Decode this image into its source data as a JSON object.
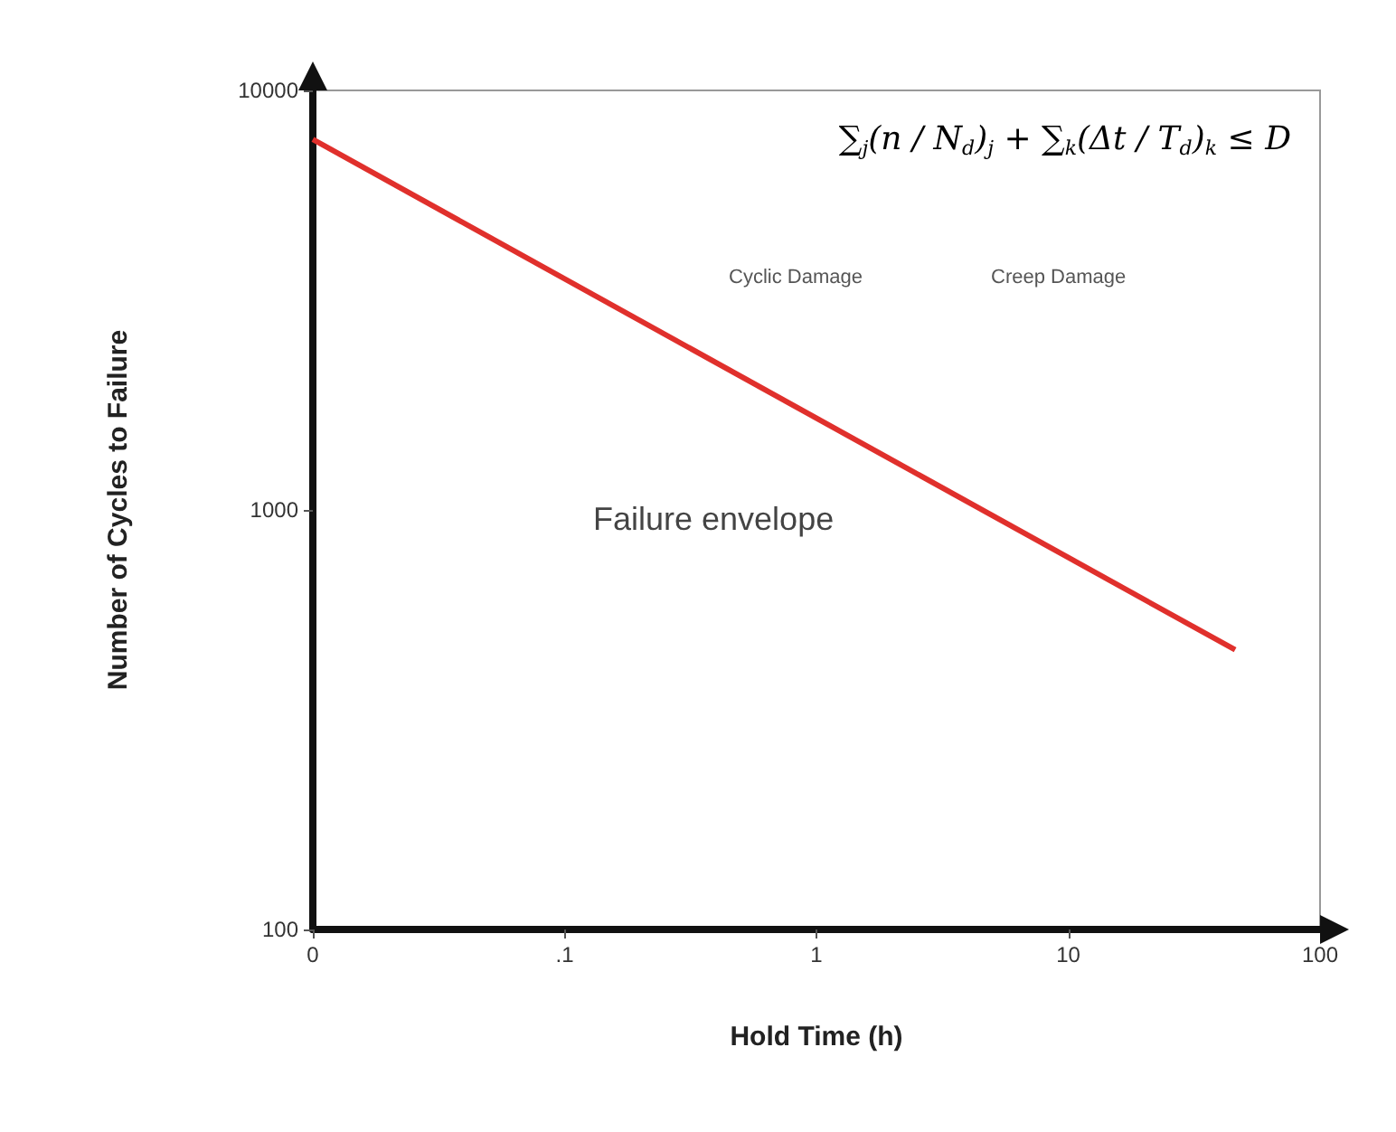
{
  "chart_data": {
    "type": "line",
    "xlabel": "Hold Time (h)",
    "ylabel": "Number of Cycles to Failure",
    "log": "xy",
    "x": [
      0.01,
      46
    ],
    "series": [
      {
        "color": "#e0302c",
        "values": [
          7640,
          464
        ]
      }
    ],
    "xlim": [
      0.01,
      100
    ],
    "xticks": [
      {
        "value": 0.01,
        "label": "0"
      },
      {
        "value": 0.1,
        "label": ".1"
      },
      1,
      10,
      100
    ],
    "ylim": [
      100,
      10000
    ],
    "yticks": [
      100,
      1000,
      10000
    ],
    "marker": "none",
    "line_style": "solid",
    "grid": false,
    "annotations": [
      "∑$_{j}$(n / N$_{d}$)$_{j}$ + ∑$_{k}$(Δt / T$_{d}$)$_{k}$ ≤ D",
      "Cyclic Damage",
      "Creep Damage",
      "Failure envelope"
    ]
  }
}
